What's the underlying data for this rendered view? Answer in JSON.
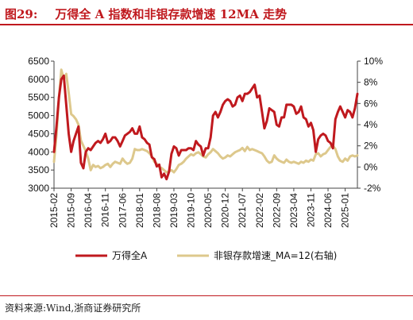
{
  "figure": {
    "label": "图29:",
    "title": "万得全 A 指数和非银存款增速 12MA 走势",
    "source": "资料来源:Wind,浙商证券研究所"
  },
  "colors": {
    "primary": "#c0191e",
    "secondary": "#ddc88c",
    "axis": "#444444",
    "text": "#111111"
  },
  "chart_data": {
    "type": "line",
    "left_axis": {
      "ylim": [
        3000,
        6500
      ],
      "ticks": [
        "3000",
        "3500",
        "4000",
        "4500",
        "5000",
        "5500",
        "6000",
        "6500"
      ]
    },
    "right_axis": {
      "ylim": [
        -2,
        10
      ],
      "ticks": [
        "-2%",
        "0%",
        "2%",
        "4%",
        "6%",
        "8%",
        "10%"
      ]
    },
    "x_range": [
      "2015-02",
      "2025-06"
    ],
    "x_ticks": [
      "2015-02",
      "2015-09",
      "2016-04",
      "2016-11",
      "2017-06",
      "2018-01",
      "2018-08",
      "2019-03",
      "2019-10",
      "2020-05",
      "2020-12",
      "2021-07",
      "2022-02",
      "2022-09",
      "2023-04",
      "2023-11",
      "2024-06",
      "2025-01"
    ],
    "legend": [
      "万得全A",
      "非银存款增速_MA=12(右轴)"
    ],
    "series": [
      {
        "name": "万得全A",
        "axis": "left",
        "color": "#c0191e",
        "points": [
          [
            "2015-02",
            4000
          ],
          [
            "2015-03",
            4700
          ],
          [
            "2015-04",
            5500
          ],
          [
            "2015-05",
            6000
          ],
          [
            "2015-06",
            6100
          ],
          [
            "2015-07",
            5300
          ],
          [
            "2015-08",
            4500
          ],
          [
            "2015-09",
            4000
          ],
          [
            "2015-10",
            4300
          ],
          [
            "2015-11",
            4500
          ],
          [
            "2015-12",
            4700
          ],
          [
            "2016-01",
            3700
          ],
          [
            "2016-02",
            3550
          ],
          [
            "2016-03",
            4000
          ],
          [
            "2016-04",
            4100
          ],
          [
            "2016-05",
            4050
          ],
          [
            "2016-06",
            4150
          ],
          [
            "2016-07",
            4250
          ],
          [
            "2016-08",
            4300
          ],
          [
            "2016-09",
            4250
          ],
          [
            "2016-10",
            4350
          ],
          [
            "2016-11",
            4500
          ],
          [
            "2016-12",
            4250
          ],
          [
            "2017-01",
            4300
          ],
          [
            "2017-02",
            4400
          ],
          [
            "2017-03",
            4400
          ],
          [
            "2017-04",
            4300
          ],
          [
            "2017-05",
            4150
          ],
          [
            "2017-06",
            4300
          ],
          [
            "2017-07",
            4450
          ],
          [
            "2017-08",
            4500
          ],
          [
            "2017-09",
            4550
          ],
          [
            "2017-10",
            4650
          ],
          [
            "2017-11",
            4500
          ],
          [
            "2017-12",
            4500
          ],
          [
            "2018-01",
            4700
          ],
          [
            "2018-02",
            4400
          ],
          [
            "2018-03",
            4350
          ],
          [
            "2018-04",
            4250
          ],
          [
            "2018-05",
            4200
          ],
          [
            "2018-06",
            3850
          ],
          [
            "2018-07",
            3800
          ],
          [
            "2018-08",
            3600
          ],
          [
            "2018-09",
            3650
          ],
          [
            "2018-10",
            3300
          ],
          [
            "2018-11",
            3400
          ],
          [
            "2018-12",
            3250
          ],
          [
            "2019-01",
            3450
          ],
          [
            "2019-02",
            3950
          ],
          [
            "2019-03",
            4150
          ],
          [
            "2019-04",
            4100
          ],
          [
            "2019-05",
            3900
          ],
          [
            "2019-06",
            4050
          ],
          [
            "2019-07",
            4050
          ],
          [
            "2019-08",
            4050
          ],
          [
            "2019-09",
            4100
          ],
          [
            "2019-10",
            4100
          ],
          [
            "2019-11",
            4050
          ],
          [
            "2019-12",
            4300
          ],
          [
            "2020-01",
            4200
          ],
          [
            "2020-02",
            4150
          ],
          [
            "2020-03",
            3900
          ],
          [
            "2020-04",
            4100
          ],
          [
            "2020-05",
            4100
          ],
          [
            "2020-06",
            4400
          ],
          [
            "2020-07",
            5000
          ],
          [
            "2020-08",
            5100
          ],
          [
            "2020-09",
            4950
          ],
          [
            "2020-10",
            5100
          ],
          [
            "2020-11",
            5300
          ],
          [
            "2020-12",
            5400
          ],
          [
            "2021-01",
            5450
          ],
          [
            "2021-02",
            5400
          ],
          [
            "2021-03",
            5250
          ],
          [
            "2021-04",
            5300
          ],
          [
            "2021-05",
            5500
          ],
          [
            "2021-06",
            5550
          ],
          [
            "2021-07",
            5400
          ],
          [
            "2021-08",
            5600
          ],
          [
            "2021-09",
            5600
          ],
          [
            "2021-10",
            5650
          ],
          [
            "2021-11",
            5750
          ],
          [
            "2021-12",
            5850
          ],
          [
            "2022-01",
            5500
          ],
          [
            "2022-02",
            5550
          ],
          [
            "2022-03",
            5100
          ],
          [
            "2022-04",
            4650
          ],
          [
            "2022-05",
            4850
          ],
          [
            "2022-06",
            5200
          ],
          [
            "2022-07",
            5150
          ],
          [
            "2022-08",
            5100
          ],
          [
            "2022-09",
            4750
          ],
          [
            "2022-10",
            4700
          ],
          [
            "2022-11",
            4950
          ],
          [
            "2022-12",
            4950
          ],
          [
            "2023-01",
            5300
          ],
          [
            "2023-02",
            5300
          ],
          [
            "2023-03",
            5300
          ],
          [
            "2023-04",
            5250
          ],
          [
            "2023-05",
            5050
          ],
          [
            "2023-06",
            5100
          ],
          [
            "2023-07",
            5250
          ],
          [
            "2023-08",
            4950
          ],
          [
            "2023-09",
            4900
          ],
          [
            "2023-10",
            4700
          ],
          [
            "2023-11",
            4800
          ],
          [
            "2023-12",
            4600
          ],
          [
            "2024-01",
            4000
          ],
          [
            "2024-02",
            4350
          ],
          [
            "2024-03",
            4450
          ],
          [
            "2024-04",
            4500
          ],
          [
            "2024-05",
            4450
          ],
          [
            "2024-06",
            4300
          ],
          [
            "2024-07",
            4250
          ],
          [
            "2024-08",
            4100
          ],
          [
            "2024-09",
            4900
          ],
          [
            "2024-10",
            5100
          ],
          [
            "2024-11",
            5250
          ],
          [
            "2024-12",
            5100
          ],
          [
            "2025-01",
            4950
          ],
          [
            "2025-02",
            5150
          ],
          [
            "2025-03",
            5100
          ],
          [
            "2025-04",
            4950
          ],
          [
            "2025-05",
            5200
          ],
          [
            "2025-06",
            5600
          ]
        ]
      },
      {
        "name": "非银存款增速_MA=12(右轴)",
        "axis": "right",
        "color": "#ddc88c",
        "points": [
          [
            "2015-02",
            0.5
          ],
          [
            "2015-03",
            3.0
          ],
          [
            "2015-04",
            6.5
          ],
          [
            "2015-05",
            9.2
          ],
          [
            "2015-06",
            8.3
          ],
          [
            "2015-07",
            8.8
          ],
          [
            "2015-08",
            7.0
          ],
          [
            "2015-09",
            5.0
          ],
          [
            "2015-10",
            4.8
          ],
          [
            "2015-11",
            4.5
          ],
          [
            "2015-12",
            4.0
          ],
          [
            "2016-01",
            2.5
          ],
          [
            "2016-02",
            2.0
          ],
          [
            "2016-03",
            1.5
          ],
          [
            "2016-04",
            0.8
          ],
          [
            "2016-05",
            -0.3
          ],
          [
            "2016-06",
            0.2
          ],
          [
            "2016-07",
            0.0
          ],
          [
            "2016-08",
            0.1
          ],
          [
            "2016-09",
            -0.1
          ],
          [
            "2016-10",
            0.0
          ],
          [
            "2016-11",
            0.2
          ],
          [
            "2016-12",
            0.3
          ],
          [
            "2017-01",
            0.0
          ],
          [
            "2017-02",
            0.3
          ],
          [
            "2017-03",
            0.5
          ],
          [
            "2017-04",
            0.4
          ],
          [
            "2017-05",
            0.3
          ],
          [
            "2017-06",
            0.8
          ],
          [
            "2017-07",
            0.5
          ],
          [
            "2017-08",
            0.3
          ],
          [
            "2017-09",
            0.4
          ],
          [
            "2017-10",
            0.8
          ],
          [
            "2017-11",
            1.7
          ],
          [
            "2017-12",
            1.6
          ],
          [
            "2018-01",
            1.6
          ],
          [
            "2018-02",
            1.7
          ],
          [
            "2018-03",
            1.6
          ],
          [
            "2018-04",
            1.5
          ],
          [
            "2018-05",
            1.3
          ],
          [
            "2018-06",
            1.0
          ],
          [
            "2018-07",
            0.5
          ],
          [
            "2018-08",
            0.3
          ],
          [
            "2018-09",
            0.0
          ],
          [
            "2018-10",
            -0.1
          ],
          [
            "2018-11",
            -0.3
          ],
          [
            "2018-12",
            -0.5
          ],
          [
            "2019-01",
            -0.4
          ],
          [
            "2019-02",
            -0.3
          ],
          [
            "2019-03",
            -0.5
          ],
          [
            "2019-04",
            -0.2
          ],
          [
            "2019-05",
            0.2
          ],
          [
            "2019-06",
            0.3
          ],
          [
            "2019-07",
            0.5
          ],
          [
            "2019-08",
            0.8
          ],
          [
            "2019-09",
            1.0
          ],
          [
            "2019-10",
            1.2
          ],
          [
            "2019-11",
            1.1
          ],
          [
            "2019-12",
            1.3
          ],
          [
            "2020-01",
            1.4
          ],
          [
            "2020-02",
            1.2
          ],
          [
            "2020-03",
            1.0
          ],
          [
            "2020-04",
            0.9
          ],
          [
            "2020-05",
            1.2
          ],
          [
            "2020-06",
            1.4
          ],
          [
            "2020-07",
            1.7
          ],
          [
            "2020-08",
            1.5
          ],
          [
            "2020-09",
            1.3
          ],
          [
            "2020-10",
            1.0
          ],
          [
            "2020-11",
            0.8
          ],
          [
            "2020-12",
            0.9
          ],
          [
            "2021-01",
            1.1
          ],
          [
            "2021-02",
            1.0
          ],
          [
            "2021-03",
            1.2
          ],
          [
            "2021-04",
            1.4
          ],
          [
            "2021-05",
            1.5
          ],
          [
            "2021-06",
            1.6
          ],
          [
            "2021-07",
            1.8
          ],
          [
            "2021-08",
            1.5
          ],
          [
            "2021-09",
            1.9
          ],
          [
            "2021-10",
            1.6
          ],
          [
            "2021-11",
            1.7
          ],
          [
            "2021-12",
            1.6
          ],
          [
            "2022-01",
            1.5
          ],
          [
            "2022-02",
            1.4
          ],
          [
            "2022-03",
            1.3
          ],
          [
            "2022-04",
            1.0
          ],
          [
            "2022-05",
            0.6
          ],
          [
            "2022-06",
            0.4
          ],
          [
            "2022-07",
            0.5
          ],
          [
            "2022-08",
            1.1
          ],
          [
            "2022-09",
            0.8
          ],
          [
            "2022-10",
            0.6
          ],
          [
            "2022-11",
            0.5
          ],
          [
            "2022-12",
            0.4
          ],
          [
            "2023-01",
            0.7
          ],
          [
            "2023-02",
            0.5
          ],
          [
            "2023-03",
            0.4
          ],
          [
            "2023-04",
            0.5
          ],
          [
            "2023-05",
            0.4
          ],
          [
            "2023-06",
            0.3
          ],
          [
            "2023-07",
            0.5
          ],
          [
            "2023-08",
            0.4
          ],
          [
            "2023-09",
            0.6
          ],
          [
            "2023-10",
            0.5
          ],
          [
            "2023-11",
            0.7
          ],
          [
            "2023-12",
            0.6
          ],
          [
            "2024-01",
            1.2
          ],
          [
            "2024-02",
            1.3
          ],
          [
            "2024-03",
            1.0
          ],
          [
            "2024-04",
            1.2
          ],
          [
            "2024-05",
            1.3
          ],
          [
            "2024-06",
            1.6
          ],
          [
            "2024-07",
            1.9
          ],
          [
            "2024-08",
            2.0
          ],
          [
            "2024-09",
            1.7
          ],
          [
            "2024-10",
            1.0
          ],
          [
            "2024-11",
            0.6
          ],
          [
            "2024-12",
            0.5
          ],
          [
            "2025-01",
            0.8
          ],
          [
            "2025-02",
            0.6
          ],
          [
            "2025-03",
            1.0
          ],
          [
            "2025-04",
            1.1
          ],
          [
            "2025-05",
            1.0
          ],
          [
            "2025-06",
            1.1
          ]
        ]
      }
    ]
  }
}
